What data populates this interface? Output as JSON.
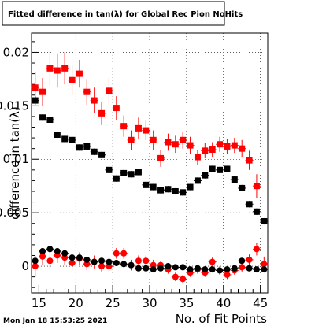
{
  "chart_data": {
    "type": "scatter",
    "title": "Fitted difference in tan(λ) for Global Rec Pion NoHits",
    "xlabel": "No. of Fit Points",
    "ylabel": "difference in tan(λ)",
    "timestamp": "Mon Jan 18 15:53:25 2021",
    "xlim": [
      14,
      46
    ],
    "ylim": [
      -0.0025,
      0.0218
    ],
    "x_ticks": [
      15,
      20,
      25,
      30,
      35,
      40,
      45
    ],
    "x_tick_labels": [
      "15",
      "20",
      "25",
      "30",
      "35",
      "40",
      "45"
    ],
    "y_ticks": [
      0,
      0.005,
      0.01,
      0.015,
      0.02
    ],
    "y_tick_labels": [
      "0",
      "0.005",
      "0.01",
      "0.015",
      "0.02"
    ],
    "grid": true,
    "series": [
      {
        "color": "#ff0000",
        "marker": "square",
        "x": [
          14.5,
          15.5,
          16.5,
          17.5,
          18.5,
          19.5,
          20.5,
          21.5,
          22.5,
          23.5,
          24.5,
          25.5,
          26.5,
          27.5,
          28.5,
          29.5,
          30.5,
          31.5,
          32.5,
          33.5,
          34.5,
          35.5,
          36.5,
          37.5,
          38.5,
          39.5,
          40.5,
          41.5,
          42.5,
          43.5,
          44.5
        ],
        "y": [
          0.0167,
          0.0163,
          0.0185,
          0.0183,
          0.0185,
          0.0174,
          0.018,
          0.0163,
          0.0155,
          0.0143,
          0.0164,
          0.0148,
          0.0131,
          0.0118,
          0.0129,
          0.0127,
          0.0118,
          0.0101,
          0.0116,
          0.0114,
          0.0118,
          0.0113,
          0.0102,
          0.0108,
          0.0109,
          0.0114,
          0.0112,
          0.0113,
          0.011,
          0.0099,
          0.0075
        ],
        "err": [
          0.0015,
          0.0013,
          0.0016,
          0.0016,
          0.0015,
          0.0014,
          0.0013,
          0.0012,
          0.0012,
          0.0011,
          0.0012,
          0.0011,
          0.001,
          0.0009,
          0.001,
          0.0009,
          0.0009,
          0.0008,
          0.0008,
          0.0008,
          0.0008,
          0.0008,
          0.0007,
          0.0007,
          0.0007,
          0.0007,
          0.0007,
          0.0007,
          0.0008,
          0.0009,
          0.0011
        ]
      },
      {
        "color": "#000000",
        "marker": "square",
        "x": [
          14.5,
          15.5,
          16.5,
          17.5,
          18.5,
          19.5,
          20.5,
          21.5,
          22.5,
          23.5,
          24.5,
          25.5,
          26.5,
          27.5,
          28.5,
          29.5,
          30.5,
          31.5,
          32.5,
          33.5,
          34.5,
          35.5,
          36.5,
          37.5,
          38.5,
          39.5,
          40.5,
          41.5,
          42.5,
          43.5,
          44.5,
          45.5
        ],
        "y": [
          0.0155,
          0.0139,
          0.0137,
          0.0123,
          0.0119,
          0.0118,
          0.0111,
          0.0112,
          0.0107,
          0.0104,
          0.009,
          0.0082,
          0.0087,
          0.0086,
          0.0088,
          0.0076,
          0.0074,
          0.0071,
          0.0072,
          0.007,
          0.0069,
          0.0074,
          0.008,
          0.0085,
          0.0091,
          0.009,
          0.0091,
          0.0081,
          0.0073,
          0.0058,
          0.0051,
          0.0042
        ],
        "err": [
          0.0004,
          0.0003,
          0.0003,
          0.0003,
          0.0003,
          0.0003,
          0.0003,
          0.0003,
          0.0003,
          0.0003,
          0.0003,
          0.0003,
          0.0003,
          0.0003,
          0.0003,
          0.0003,
          0.0003,
          0.0003,
          0.0003,
          0.0003,
          0.0003,
          0.0003,
          0.0003,
          0.0003,
          0.0003,
          0.0003,
          0.0003,
          0.0003,
          0.0003,
          0.0003,
          0.0003,
          0.0003
        ]
      },
      {
        "color": "#ff0000",
        "marker": "circle",
        "x": [
          14.5,
          15.5,
          16.5,
          17.5,
          18.5,
          19.5,
          20.5,
          21.5,
          22.5,
          23.5,
          24.5,
          25.5,
          26.5,
          27.5,
          28.5,
          29.5,
          30.5,
          31.5,
          32.5,
          33.5,
          34.5,
          35.5,
          36.5,
          37.5,
          38.5,
          39.5,
          40.5,
          41.5,
          42.5,
          43.5,
          44.5,
          45.5
        ],
        "y": [
          0.0,
          0.0009,
          0.0005,
          0.001,
          0.0008,
          0.0003,
          0.0007,
          0.0002,
          0.0004,
          0.0,
          0.0,
          0.0012,
          0.0012,
          0.0001,
          0.0005,
          0.0005,
          0.0001,
          0.0001,
          -0.0003,
          -0.001,
          -0.0012,
          -0.0006,
          -0.0003,
          -0.0006,
          0.0004,
          -0.0004,
          -0.0008,
          -0.0004,
          -0.0001,
          0.0006,
          0.0016,
          0.0002
        ],
        "err": [
          0.001,
          0.0008,
          0.0008,
          0.0007,
          0.0007,
          0.0007,
          0.0006,
          0.0006,
          0.0006,
          0.0005,
          0.0006,
          0.0005,
          0.0005,
          0.0005,
          0.0005,
          0.0005,
          0.0005,
          0.0004,
          0.0004,
          0.0004,
          0.0004,
          0.0004,
          0.0004,
          0.0004,
          0.0004,
          0.0004,
          0.0004,
          0.0004,
          0.0004,
          0.0005,
          0.0006,
          0.0007
        ]
      },
      {
        "color": "#000000",
        "marker": "circle",
        "x": [
          14.5,
          15.5,
          16.5,
          17.5,
          18.5,
          19.5,
          20.5,
          21.5,
          22.5,
          23.5,
          24.5,
          25.5,
          26.5,
          27.5,
          28.5,
          29.5,
          30.5,
          31.5,
          32.5,
          33.5,
          34.5,
          35.5,
          36.5,
          37.5,
          38.5,
          39.5,
          40.5,
          41.5,
          42.5,
          43.5,
          44.5,
          45.5
        ],
        "y": [
          0.0005,
          0.0014,
          0.0016,
          0.0014,
          0.0012,
          0.0008,
          0.0008,
          0.0006,
          0.0004,
          0.0005,
          0.0004,
          0.0003,
          0.0002,
          0.0001,
          -0.0002,
          -0.0002,
          -0.0003,
          -0.0002,
          0.0,
          -0.0001,
          -0.0001,
          -0.0003,
          -0.0002,
          -0.0003,
          -0.0003,
          -0.0004,
          -0.0003,
          -0.0002,
          0.0005,
          -0.0002,
          -0.0003,
          -0.0003
        ],
        "err": [
          0.0002,
          0.0002,
          0.0002,
          0.0002,
          0.0002,
          0.0002,
          0.0002,
          0.0002,
          0.0002,
          0.0002,
          0.0002,
          0.0002,
          0.0002,
          0.0002,
          0.0002,
          0.0002,
          0.0002,
          0.0002,
          0.0002,
          0.0002,
          0.0002,
          0.0002,
          0.0002,
          0.0002,
          0.0002,
          0.0002,
          0.0002,
          0.0002,
          0.0002,
          0.0002,
          0.0002,
          0.0002
        ]
      }
    ]
  }
}
